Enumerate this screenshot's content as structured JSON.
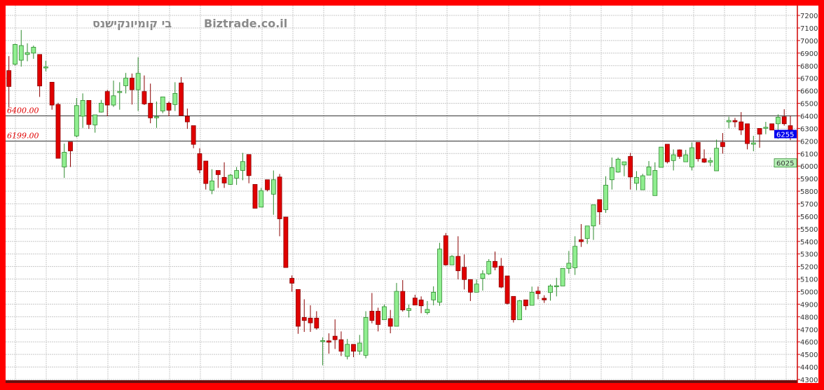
{
  "header": {
    "company_name": "בי קומיונקישנס",
    "site_name": "Biztrade.co.il"
  },
  "colors": {
    "frame": "#ff0000",
    "up_fill": "#90ee90",
    "up_stroke": "#2e8b2e",
    "down_fill": "#e00000",
    "down_stroke": "#8b0000",
    "level_label": "#e00000",
    "last_price_box": "#0000ee",
    "secondary_box": "#b8f0b8"
  },
  "chart_data": {
    "type": "candlestick",
    "ylim": [
      4300,
      7300
    ],
    "yticks": [
      4300,
      4400,
      4500,
      4600,
      4700,
      4800,
      4900,
      5000,
      5100,
      5200,
      5300,
      5400,
      5500,
      5600,
      5700,
      5800,
      5900,
      6000,
      6100,
      6200,
      6300,
      6400,
      6500,
      6600,
      6700,
      6800,
      6900,
      7000,
      7100,
      7200
    ],
    "y_axis_side": "right",
    "grid": true,
    "levels": [
      {
        "value": 6400,
        "label": "6400.00"
      },
      {
        "value": 6199,
        "label": "6199.00"
      }
    ],
    "last_price_label": "6255",
    "secondary_label": "6025",
    "ohlc_order": [
      "open",
      "high",
      "low",
      "close"
    ],
    "candles": [
      [
        6761,
        6876,
        6467,
        6634
      ],
      [
        6811,
        6975,
        6800,
        6969
      ],
      [
        6843,
        7084,
        6792,
        6960
      ],
      [
        6889,
        6978,
        6835,
        6904
      ],
      [
        6900,
        6960,
        6854,
        6947
      ],
      [
        6889,
        6889,
        6551,
        6638
      ],
      [
        6787,
        6839,
        6755,
        6790
      ],
      [
        6668,
        6668,
        6449,
        6486
      ],
      [
        6491,
        6504,
        6062,
        6062
      ],
      [
        5993,
        6179,
        5906,
        6110
      ],
      [
        6192,
        6192,
        5993,
        6121
      ],
      [
        6240,
        6542,
        6229,
        6482
      ],
      [
        6397,
        6579,
        6304,
        6523
      ],
      [
        6523,
        6523,
        6296,
        6331
      ],
      [
        6328,
        6408,
        6266,
        6408
      ],
      [
        6430,
        6527,
        6426,
        6501
      ],
      [
        6594,
        6607,
        6397,
        6486
      ],
      [
        6486,
        6681,
        6471,
        6560
      ],
      [
        6594,
        6668,
        6449,
        6594
      ],
      [
        6640,
        6742,
        6579,
        6701
      ],
      [
        6701,
        6737,
        6490,
        6608
      ],
      [
        6608,
        6867,
        6439,
        6739
      ],
      [
        6594,
        6722,
        6486,
        6495
      ],
      [
        6501,
        6657,
        6341,
        6384
      ],
      [
        6393,
        6514,
        6304,
        6393
      ],
      [
        6439,
        6551,
        6421,
        6551
      ],
      [
        6501,
        6514,
        6397,
        6445
      ],
      [
        6490,
        6668,
        6439,
        6579
      ],
      [
        6662,
        6709,
        6402,
        6402
      ],
      [
        6397,
        6458,
        6296,
        6352
      ],
      [
        6322,
        6322,
        6142,
        6173
      ],
      [
        6099,
        6142,
        5943,
        5969
      ],
      [
        6040,
        6040,
        5813,
        5861
      ],
      [
        5807,
        5975,
        5776,
        5882
      ],
      [
        5965,
        5965,
        5826,
        5932
      ],
      [
        5910,
        6030,
        5826,
        5865
      ],
      [
        5854,
        5937,
        5850,
        5928
      ],
      [
        5904,
        5993,
        5850,
        5965
      ],
      [
        5965,
        6105,
        5887,
        6036
      ],
      [
        6092,
        6092,
        5863,
        5924
      ],
      [
        5854,
        5854,
        5664,
        5664
      ],
      [
        5673,
        5826,
        5673,
        5804
      ],
      [
        5891,
        5891,
        5798,
        5811
      ],
      [
        5776,
        5965,
        5612,
        5891
      ],
      [
        5913,
        5937,
        5441,
        5580
      ],
      [
        5594,
        5594,
        5192,
        5192
      ],
      [
        5106,
        5129,
        4999,
        5067
      ],
      [
        5017,
        5017,
        4664,
        4724
      ],
      [
        4794,
        4939,
        4679,
        4770
      ],
      [
        4789,
        4891,
        4679,
        4751
      ],
      [
        4789,
        4844,
        4697,
        4710
      ],
      [
        4608,
        4636,
        4413,
        4610
      ],
      [
        4608,
        4668,
        4506,
        4597
      ],
      [
        4645,
        4779,
        4543,
        4617
      ],
      [
        4617,
        4683,
        4487,
        4525
      ],
      [
        4484,
        4623,
        4460,
        4580
      ],
      [
        4580,
        4580,
        4478,
        4525
      ],
      [
        4525,
        4655,
        4497,
        4590
      ],
      [
        4493,
        4844,
        4469,
        4794
      ],
      [
        4844,
        4989,
        4748,
        4770
      ],
      [
        4844,
        4872,
        4683,
        4738
      ],
      [
        4776,
        4897,
        4776,
        4880
      ],
      [
        4785,
        4854,
        4668,
        4724
      ],
      [
        4724,
        5069,
        4724,
        5002
      ],
      [
        5002,
        5092,
        4841,
        4854
      ],
      [
        4850,
        4897,
        4794,
        4865
      ],
      [
        4949,
        4975,
        4893,
        4893
      ],
      [
        4934,
        4962,
        4828,
        4887
      ],
      [
        4832,
        4925,
        4817,
        4858
      ],
      [
        4934,
        5042,
        4891,
        4995
      ],
      [
        4915,
        5389,
        4887,
        5339
      ],
      [
        5445,
        5467,
        5207,
        5213
      ],
      [
        5213,
        5291,
        5213,
        5281
      ],
      [
        5281,
        5441,
        5097,
        5166
      ],
      [
        5194,
        5296,
        5017,
        5096
      ],
      [
        5096,
        5096,
        4925,
        4995
      ],
      [
        4995,
        5097,
        4995,
        5060
      ],
      [
        5105,
        5170,
        5008,
        5142
      ],
      [
        5142,
        5259,
        5133,
        5241
      ],
      [
        5241,
        5319,
        5170,
        5194
      ],
      [
        5203,
        5268,
        5027,
        5036
      ],
      [
        5125,
        5125,
        4897,
        4906
      ],
      [
        4962,
        4962,
        4754,
        4776
      ],
      [
        4776,
        4934,
        4776,
        4928
      ],
      [
        4934,
        4934,
        4854,
        4887
      ],
      [
        4891,
        5040,
        4891,
        4995
      ],
      [
        5004,
        5040,
        4939,
        4984
      ],
      [
        4947,
        4971,
        4910,
        4934
      ],
      [
        4993,
        5058,
        4928,
        5045
      ],
      [
        5045,
        5110,
        4962,
        5047
      ],
      [
        5045,
        5185,
        5045,
        5185
      ],
      [
        5185,
        5324,
        5144,
        5226
      ],
      [
        5190,
        5441,
        5133,
        5361
      ],
      [
        5413,
        5538,
        5356,
        5398
      ],
      [
        5423,
        5523,
        5380,
        5523
      ],
      [
        5523,
        5692,
        5412,
        5692
      ],
      [
        5733,
        5733,
        5534,
        5635
      ],
      [
        5653,
        5919,
        5627,
        5848
      ],
      [
        5891,
        6068,
        5813,
        5988
      ],
      [
        5952,
        6068,
        5947,
        6055
      ],
      [
        6010,
        6034,
        5919,
        6034
      ],
      [
        6077,
        6105,
        5813,
        5913
      ],
      [
        5863,
        5960,
        5808,
        5910
      ],
      [
        5811,
        5938,
        5811,
        5923
      ],
      [
        5928,
        6040,
        5928,
        5993
      ],
      [
        5765,
        6030,
        5765,
        5965
      ],
      [
        5990,
        6151,
        5990,
        6151
      ],
      [
        6174,
        6174,
        6021,
        6034
      ],
      [
        6044,
        6133,
        5965,
        6090
      ],
      [
        6129,
        6133,
        6058,
        6077
      ],
      [
        6034,
        6129,
        6034,
        6090
      ],
      [
        5993,
        6189,
        5965,
        6146
      ],
      [
        6189,
        6189,
        6036,
        6058
      ],
      [
        6058,
        6133,
        6025,
        6031
      ],
      [
        6031,
        6068,
        5999,
        6044
      ],
      [
        5962,
        6211,
        5962,
        6142
      ],
      [
        6189,
        6263,
        6099,
        6155
      ],
      [
        6352,
        6393,
        6300,
        6363
      ],
      [
        6363,
        6384,
        6309,
        6352
      ],
      [
        6352,
        6430,
        6248,
        6287
      ],
      [
        6337,
        6337,
        6133,
        6179
      ],
      [
        6174,
        6241,
        6118,
        6185
      ],
      [
        6300,
        6300,
        6146,
        6254
      ],
      [
        6304,
        6352,
        6254,
        6309
      ],
      [
        6337,
        6337,
        6287,
        6287
      ],
      [
        6337,
        6412,
        6216,
        6389
      ],
      [
        6393,
        6453,
        6322,
        6337
      ],
      [
        6322,
        6402,
        6207,
        6255
      ]
    ]
  }
}
